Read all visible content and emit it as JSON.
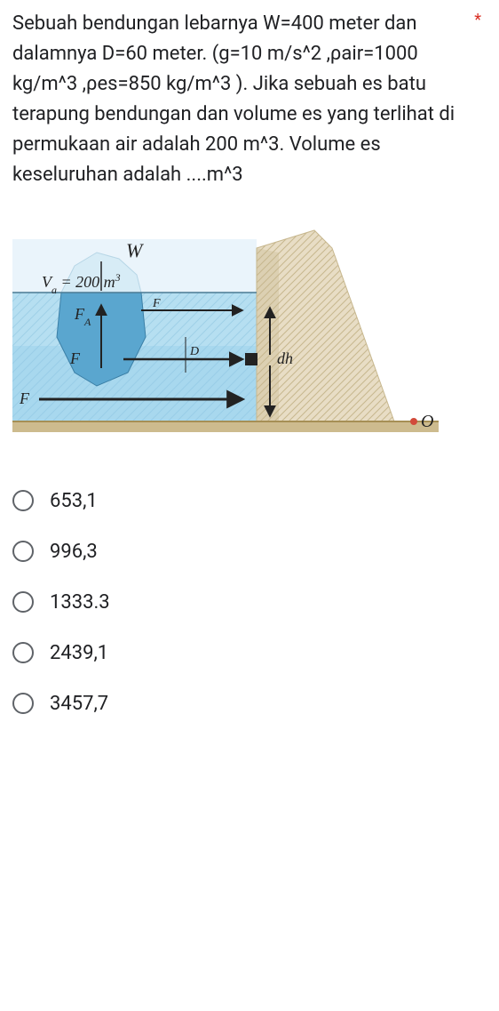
{
  "question": {
    "required": true,
    "text": "Sebuah bendungan lebarnya W=400 meter dan dalamnya D=60 meter. (g=10 m/s^2 ,ρair=1000 kg/m^3 ,ρes=850 kg/m^3 ). Jika sebuah es batu terapung bendungan dan volume es yang terlihat di permukaan air adalah 200 m^3. Volume es keseluruhan adalah ....m^3"
  },
  "figure": {
    "type": "diagram",
    "description": "dam-with-floating-ice",
    "background_color": "#ffffff",
    "water_color_top": "#b6dff1",
    "water_color_bottom": "#8fcce8",
    "ice_above_color": "#d7ecf6",
    "ice_below_color": "#5aa6cf",
    "dam_light": "#e8ddc5",
    "dam_dark": "#c7b78e",
    "ground_color": "#cdbb8e",
    "text_color": "#222222",
    "labels": {
      "W": "W",
      "Va": "Vₐ = 200 m³",
      "FA": "F_A",
      "F_small": "F",
      "F_left1": "F",
      "F_left2": "F",
      "dh": "dh",
      "D": "D",
      "O": "O"
    },
    "font_family": "Georgia, 'Times New Roman', serif",
    "font_size_main": 18,
    "font_size_small": 14,
    "arrow_color": "#222222"
  },
  "options": [
    {
      "value": "653,1"
    },
    {
      "value": "996,3"
    },
    {
      "value": "1333.3"
    },
    {
      "value": "2439,1"
    },
    {
      "value": "3457,7"
    }
  ],
  "styling": {
    "radio_border_color": "#5f6368",
    "text_color": "#202124",
    "required_color": "#d93025"
  }
}
